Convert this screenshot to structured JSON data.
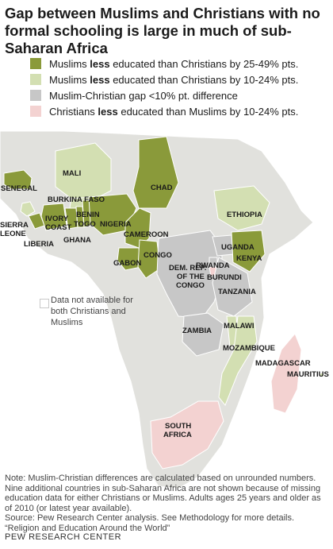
{
  "title": "Gap between Muslims and Christians with no formal schooling is large in much of sub-Saharan Africa",
  "colors": {
    "dark_green": "#8a9a3a",
    "light_green": "#d3dfb2",
    "gray": "#c7c7c7",
    "pink": "#f3d2d1",
    "land": "#dcdcd8",
    "border": "#ffffff"
  },
  "legend": [
    {
      "pre": "Muslims ",
      "bold": "less",
      "post": " educated than Christians by 25-49% pts.",
      "color": "#8a9a3a"
    },
    {
      "pre": "Muslims ",
      "bold": "less",
      "post": " educated than Christians by 10-24% pts.",
      "color": "#d3dfb2"
    },
    {
      "pre": "Muslim-Christian gap <10% pt. difference",
      "bold": "",
      "post": "",
      "color": "#c7c7c7"
    },
    {
      "pre": "Christians ",
      "bold": "less",
      "post": " educated than Muslims by 10-24% pts.",
      "color": "#f3d2d1"
    }
  ],
  "no_data_label": "Data not available for both Christians and Muslims",
  "countries": {
    "senegal": "SENEGAL",
    "mali": "MALI",
    "burkina_faso": "BURKINA FASO",
    "chad": "CHAD",
    "benin": "BENIN",
    "nigeria": "NIGERIA",
    "sierra_leone_1": "SIERRA",
    "sierra_leone_2": "LEONE",
    "ivory_coast_1": "IVORY",
    "ivory_coast_2": "COAST",
    "togo": "TOGO",
    "ghana": "GHANA",
    "liberia": "LIBERIA",
    "ethiopia": "ETHIOPIA",
    "cameroon": "CAMEROON",
    "uganda": "UGANDA",
    "kenya": "KENYA",
    "gabon": "GABON",
    "congo": "CONGO",
    "drc_1": "DEM. REP.",
    "drc_2": "OF THE",
    "drc_3": "CONGO",
    "rwanda": "RWANDA",
    "burundi": "BURUNDI",
    "tanzania": "TANZANIA",
    "malawi": "MALAWI",
    "zambia": "ZAMBIA",
    "mozambique": "MOZAMBIQUE",
    "madagascar": "MADAGASCAR",
    "mauritius": "MAURITIUS",
    "south_africa_1": "SOUTH",
    "south_africa_2": "AFRICA"
  },
  "notes": [
    "Note: Muslim-Christian differences are calculated based on unrounded numbers.",
    "Nine additional countries in sub-Saharan Africa are not shown because of missing",
    "education data for either Christians or Muslims. Adults ages 25 years and older as",
    "of 2010 (or latest year available).",
    "Source: Pew Research Center analysis. See Methodology for more details.",
    "“Religion and Education Around the World”"
  ],
  "footer": "PEW RESEARCH CENTER"
}
